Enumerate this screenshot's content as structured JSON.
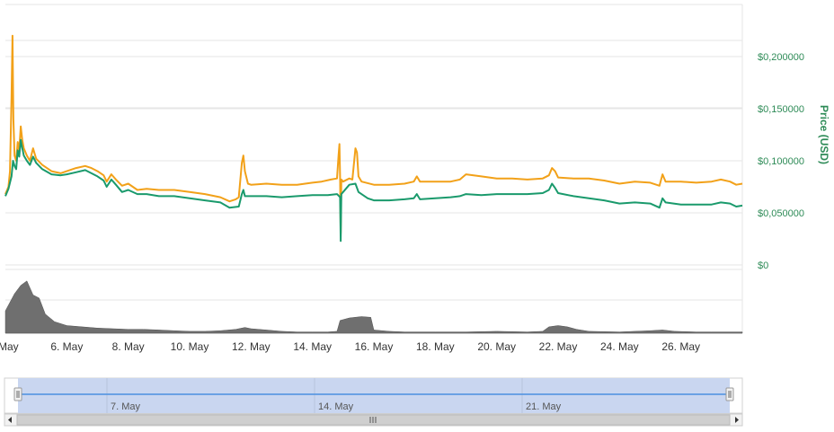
{
  "chart_data": {
    "type": "line",
    "title": "",
    "ylabel": "Price (USD)",
    "ylim": [
      0,
      0.25
    ],
    "yticks": [
      {
        "value": 0,
        "label": "$0"
      },
      {
        "value": 0.05,
        "label": "$0,050000"
      },
      {
        "value": 0.1,
        "label": "$0,100000"
      },
      {
        "value": 0.15,
        "label": "$0,150000"
      },
      {
        "value": 0.2,
        "label": "$0,200000"
      }
    ],
    "xlim": [
      4.0,
      28.0
    ],
    "xticks": [
      {
        "value": 4,
        "label": ". May"
      },
      {
        "value": 6,
        "label": "6. May"
      },
      {
        "value": 8,
        "label": "8. May"
      },
      {
        "value": 10,
        "label": "10. May"
      },
      {
        "value": 12,
        "label": "12. May"
      },
      {
        "value": 14,
        "label": "14. May"
      },
      {
        "value": 16,
        "label": "16. May"
      },
      {
        "value": 18,
        "label": "18. May"
      },
      {
        "value": 20,
        "label": "20. May"
      },
      {
        "value": 22,
        "label": "22. May"
      },
      {
        "value": 24,
        "label": "24. May"
      },
      {
        "value": 26,
        "label": "26. May"
      }
    ],
    "series": [
      {
        "color": "#f2a119",
        "points": [
          [
            4.0,
            0.068
          ],
          [
            4.1,
            0.075
          ],
          [
            4.15,
            0.09
          ],
          [
            4.2,
            0.16
          ],
          [
            4.23,
            0.22
          ],
          [
            4.26,
            0.14
          ],
          [
            4.3,
            0.105
          ],
          [
            4.35,
            0.1
          ],
          [
            4.4,
            0.118
          ],
          [
            4.45,
            0.11
          ],
          [
            4.5,
            0.133
          ],
          [
            4.55,
            0.12
          ],
          [
            4.6,
            0.112
          ],
          [
            4.7,
            0.105
          ],
          [
            4.8,
            0.1
          ],
          [
            4.9,
            0.112
          ],
          [
            5.0,
            0.102
          ],
          [
            5.2,
            0.096
          ],
          [
            5.5,
            0.09
          ],
          [
            5.8,
            0.088
          ],
          [
            6.0,
            0.09
          ],
          [
            6.3,
            0.093
          ],
          [
            6.6,
            0.095
          ],
          [
            6.8,
            0.093
          ],
          [
            7.0,
            0.09
          ],
          [
            7.2,
            0.086
          ],
          [
            7.3,
            0.08
          ],
          [
            7.45,
            0.087
          ],
          [
            7.6,
            0.082
          ],
          [
            7.8,
            0.076
          ],
          [
            8.0,
            0.078
          ],
          [
            8.3,
            0.072
          ],
          [
            8.6,
            0.073
          ],
          [
            9.0,
            0.072
          ],
          [
            9.5,
            0.072
          ],
          [
            10.0,
            0.07
          ],
          [
            10.5,
            0.068
          ],
          [
            11.0,
            0.065
          ],
          [
            11.3,
            0.061
          ],
          [
            11.5,
            0.063
          ],
          [
            11.6,
            0.065
          ],
          [
            11.7,
            0.098
          ],
          [
            11.75,
            0.105
          ],
          [
            11.8,
            0.09
          ],
          [
            11.9,
            0.078
          ],
          [
            12.0,
            0.077
          ],
          [
            12.5,
            0.078
          ],
          [
            13.0,
            0.077
          ],
          [
            13.5,
            0.077
          ],
          [
            14.0,
            0.079
          ],
          [
            14.3,
            0.08
          ],
          [
            14.6,
            0.082
          ],
          [
            14.8,
            0.083
          ],
          [
            14.85,
            0.105
          ],
          [
            14.88,
            0.116
          ],
          [
            14.9,
            0.085
          ],
          [
            14.92,
            0.03
          ],
          [
            14.94,
            0.082
          ],
          [
            15.0,
            0.08
          ],
          [
            15.2,
            0.083
          ],
          [
            15.3,
            0.082
          ],
          [
            15.4,
            0.112
          ],
          [
            15.45,
            0.108
          ],
          [
            15.5,
            0.085
          ],
          [
            15.6,
            0.08
          ],
          [
            16.0,
            0.077
          ],
          [
            16.5,
            0.077
          ],
          [
            17.0,
            0.078
          ],
          [
            17.3,
            0.08
          ],
          [
            17.4,
            0.085
          ],
          [
            17.5,
            0.08
          ],
          [
            18.0,
            0.08
          ],
          [
            18.5,
            0.08
          ],
          [
            18.8,
            0.082
          ],
          [
            19.0,
            0.087
          ],
          [
            19.5,
            0.085
          ],
          [
            20.0,
            0.083
          ],
          [
            20.5,
            0.083
          ],
          [
            21.0,
            0.082
          ],
          [
            21.5,
            0.083
          ],
          [
            21.7,
            0.086
          ],
          [
            21.8,
            0.093
          ],
          [
            21.9,
            0.09
          ],
          [
            22.0,
            0.084
          ],
          [
            22.5,
            0.083
          ],
          [
            23.0,
            0.083
          ],
          [
            23.5,
            0.081
          ],
          [
            24.0,
            0.078
          ],
          [
            24.5,
            0.08
          ],
          [
            25.0,
            0.079
          ],
          [
            25.3,
            0.076
          ],
          [
            25.4,
            0.087
          ],
          [
            25.5,
            0.08
          ],
          [
            26.0,
            0.08
          ],
          [
            26.5,
            0.079
          ],
          [
            27.0,
            0.08
          ],
          [
            27.3,
            0.082
          ],
          [
            27.6,
            0.08
          ],
          [
            27.8,
            0.077
          ],
          [
            28.0,
            0.078
          ]
        ]
      },
      {
        "color": "#1a9a6c",
        "points": [
          [
            4.0,
            0.066
          ],
          [
            4.1,
            0.073
          ],
          [
            4.2,
            0.085
          ],
          [
            4.25,
            0.1
          ],
          [
            4.3,
            0.095
          ],
          [
            4.35,
            0.092
          ],
          [
            4.4,
            0.11
          ],
          [
            4.45,
            0.104
          ],
          [
            4.5,
            0.12
          ],
          [
            4.55,
            0.112
          ],
          [
            4.6,
            0.105
          ],
          [
            4.7,
            0.1
          ],
          [
            4.8,
            0.096
          ],
          [
            4.9,
            0.104
          ],
          [
            5.0,
            0.098
          ],
          [
            5.2,
            0.092
          ],
          [
            5.5,
            0.087
          ],
          [
            5.8,
            0.086
          ],
          [
            6.0,
            0.087
          ],
          [
            6.3,
            0.089
          ],
          [
            6.6,
            0.091
          ],
          [
            6.8,
            0.088
          ],
          [
            7.0,
            0.085
          ],
          [
            7.2,
            0.081
          ],
          [
            7.3,
            0.075
          ],
          [
            7.45,
            0.082
          ],
          [
            7.6,
            0.077
          ],
          [
            7.8,
            0.07
          ],
          [
            8.0,
            0.072
          ],
          [
            8.3,
            0.068
          ],
          [
            8.6,
            0.068
          ],
          [
            9.0,
            0.066
          ],
          [
            9.5,
            0.066
          ],
          [
            10.0,
            0.064
          ],
          [
            10.5,
            0.062
          ],
          [
            11.0,
            0.06
          ],
          [
            11.3,
            0.055
          ],
          [
            11.6,
            0.056
          ],
          [
            11.7,
            0.068
          ],
          [
            11.75,
            0.072
          ],
          [
            11.8,
            0.066
          ],
          [
            12.0,
            0.066
          ],
          [
            12.5,
            0.066
          ],
          [
            13.0,
            0.065
          ],
          [
            13.5,
            0.066
          ],
          [
            14.0,
            0.067
          ],
          [
            14.5,
            0.067
          ],
          [
            14.8,
            0.068
          ],
          [
            14.9,
            0.065
          ],
          [
            14.92,
            0.023
          ],
          [
            14.94,
            0.068
          ],
          [
            15.0,
            0.07
          ],
          [
            15.2,
            0.077
          ],
          [
            15.4,
            0.078
          ],
          [
            15.5,
            0.07
          ],
          [
            15.8,
            0.064
          ],
          [
            16.0,
            0.062
          ],
          [
            16.5,
            0.062
          ],
          [
            17.0,
            0.063
          ],
          [
            17.3,
            0.064
          ],
          [
            17.4,
            0.068
          ],
          [
            17.5,
            0.063
          ],
          [
            18.0,
            0.064
          ],
          [
            18.5,
            0.065
          ],
          [
            18.8,
            0.066
          ],
          [
            19.0,
            0.068
          ],
          [
            19.5,
            0.067
          ],
          [
            20.0,
            0.068
          ],
          [
            20.5,
            0.068
          ],
          [
            21.0,
            0.068
          ],
          [
            21.5,
            0.069
          ],
          [
            21.7,
            0.072
          ],
          [
            21.8,
            0.078
          ],
          [
            21.9,
            0.074
          ],
          [
            22.0,
            0.069
          ],
          [
            22.5,
            0.066
          ],
          [
            23.0,
            0.064
          ],
          [
            23.5,
            0.062
          ],
          [
            24.0,
            0.059
          ],
          [
            24.5,
            0.06
          ],
          [
            25.0,
            0.059
          ],
          [
            25.3,
            0.055
          ],
          [
            25.4,
            0.064
          ],
          [
            25.5,
            0.06
          ],
          [
            26.0,
            0.058
          ],
          [
            26.5,
            0.058
          ],
          [
            27.0,
            0.058
          ],
          [
            27.3,
            0.06
          ],
          [
            27.6,
            0.059
          ],
          [
            27.8,
            0.056
          ],
          [
            28.0,
            0.057
          ]
        ]
      }
    ],
    "volume": {
      "color": "#6f6f6f",
      "points": [
        [
          4.0,
          0.35
        ],
        [
          4.3,
          0.62
        ],
        [
          4.5,
          0.75
        ],
        [
          4.7,
          0.82
        ],
        [
          4.9,
          0.6
        ],
        [
          5.1,
          0.55
        ],
        [
          5.3,
          0.3
        ],
        [
          5.6,
          0.18
        ],
        [
          6.0,
          0.12
        ],
        [
          6.5,
          0.1
        ],
        [
          7.0,
          0.08
        ],
        [
          7.5,
          0.07
        ],
        [
          8.0,
          0.06
        ],
        [
          8.5,
          0.06
        ],
        [
          9.0,
          0.05
        ],
        [
          9.5,
          0.04
        ],
        [
          10.0,
          0.03
        ],
        [
          10.5,
          0.03
        ],
        [
          11.0,
          0.04
        ],
        [
          11.5,
          0.06
        ],
        [
          11.8,
          0.09
        ],
        [
          12.0,
          0.07
        ],
        [
          12.5,
          0.05
        ],
        [
          13.0,
          0.03
        ],
        [
          13.5,
          0.02
        ],
        [
          14.0,
          0.02
        ],
        [
          14.5,
          0.02
        ],
        [
          14.8,
          0.03
        ],
        [
          14.9,
          0.2
        ],
        [
          15.2,
          0.24
        ],
        [
          15.6,
          0.26
        ],
        [
          15.9,
          0.25
        ],
        [
          16.0,
          0.05
        ],
        [
          16.5,
          0.03
        ],
        [
          17.0,
          0.02
        ],
        [
          18.0,
          0.02
        ],
        [
          19.0,
          0.02
        ],
        [
          20.0,
          0.03
        ],
        [
          21.0,
          0.02
        ],
        [
          21.5,
          0.03
        ],
        [
          21.7,
          0.1
        ],
        [
          22.0,
          0.12
        ],
        [
          22.3,
          0.1
        ],
        [
          22.6,
          0.06
        ],
        [
          23.0,
          0.03
        ],
        [
          24.0,
          0.02
        ],
        [
          24.5,
          0.03
        ],
        [
          25.0,
          0.04
        ],
        [
          25.4,
          0.05
        ],
        [
          25.8,
          0.03
        ],
        [
          26.5,
          0.02
        ],
        [
          27.0,
          0.02
        ],
        [
          28.0,
          0.02
        ]
      ]
    },
    "navigator": {
      "ticks": [
        {
          "value": 7,
          "label": "7. May"
        },
        {
          "value": 14,
          "label": "14. May"
        },
        {
          "value": 21,
          "label": "21. May"
        }
      ],
      "xlim": [
        4.0,
        28.0
      ],
      "fill": "#c9d6f0",
      "line_color": "#4a8fe0"
    },
    "colors": {
      "grid": "#e6e6e6",
      "axis_text": "#333333",
      "price_axis": "#2e8b57"
    }
  }
}
